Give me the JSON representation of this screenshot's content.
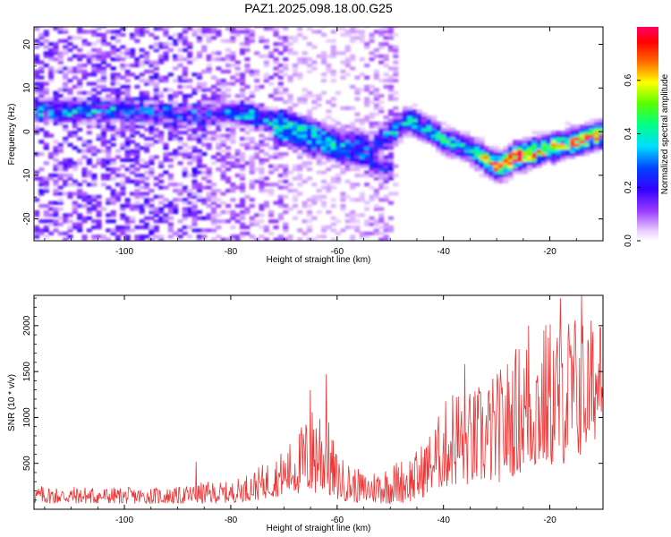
{
  "figure_title": "PAZ1.2025.098.18.00.G25",
  "chart_data": [
    {
      "type": "heatmap",
      "xlabel": "Height of straight line (km)",
      "ylabel": "Frequency (Hz)",
      "xlim": [
        -117,
        -10
      ],
      "ylim": [
        -25,
        24
      ],
      "xticks": [
        -100,
        -80,
        -60,
        -40,
        -20
      ],
      "yticks": [
        -20,
        -10,
        0,
        10,
        20
      ],
      "x_tick_labels": [
        "-100",
        "-80",
        "-60",
        "-40",
        "-20"
      ],
      "y_tick_labels": [
        "-20",
        "-10",
        "0",
        "10",
        "20"
      ],
      "colorbar": {
        "label": "Normalized spectral amplitude",
        "range": [
          0,
          0.8
        ],
        "ticks": [
          0,
          0.2,
          0.4,
          0.6
        ],
        "tick_labels": [
          "0.0",
          "0.2",
          "0.4",
          "0.6"
        ]
      },
      "ridge": [
        {
          "x": -108,
          "y": 4.5,
          "amp": 0.2
        },
        {
          "x": -100,
          "y": 4.5,
          "amp": 0.22
        },
        {
          "x": -94,
          "y": 4,
          "amp": 0.18
        },
        {
          "x": -88,
          "y": 3.5,
          "amp": 0.15
        },
        {
          "x": -82,
          "y": 4,
          "amp": 0.18
        },
        {
          "x": -76,
          "y": 3.5,
          "amp": 0.28
        },
        {
          "x": -72,
          "y": 2,
          "amp": 0.25
        },
        {
          "x": -68,
          "y": 1,
          "amp": 0.3
        },
        {
          "x": -66,
          "y": 0.5,
          "amp": 0.3
        },
        {
          "x": -63,
          "y": -1.5,
          "amp": 0.28
        },
        {
          "x": -60,
          "y": -3,
          "amp": 0.22
        },
        {
          "x": -57,
          "y": -2,
          "amp": 0.18
        },
        {
          "x": -54,
          "y": -4,
          "amp": 0.2
        },
        {
          "x": -47,
          "y": 2.5,
          "amp": 0.35
        },
        {
          "x": -43,
          "y": 0,
          "amp": 0.3
        },
        {
          "x": -40,
          "y": -2.5,
          "amp": 0.35
        },
        {
          "x": -36,
          "y": -4,
          "amp": 0.3
        },
        {
          "x": -32,
          "y": -7,
          "amp": 0.5
        },
        {
          "x": -30,
          "y": -8.5,
          "amp": 0.65
        },
        {
          "x": -27,
          "y": -6,
          "amp": 0.75
        },
        {
          "x": -22,
          "y": -4.5,
          "amp": 0.6
        },
        {
          "x": -17,
          "y": -3,
          "amp": 0.55
        },
        {
          "x": -14,
          "y": -2,
          "amp": 0.6
        },
        {
          "x": -11,
          "y": -1,
          "amp": 0.55
        }
      ],
      "secondary_ridge": [
        {
          "x": -70,
          "y": -1,
          "amp": 0.25
        },
        {
          "x": -64,
          "y": -4,
          "amp": 0.22
        },
        {
          "x": -56,
          "y": -6,
          "amp": 0.2
        },
        {
          "x": -52,
          "y": -8.5,
          "amp": 0.2
        }
      ]
    },
    {
      "type": "line",
      "xlabel": "Height of straight line (km)",
      "ylabel": "SNR (10 * v/v)",
      "xlim": [
        -117,
        -10
      ],
      "ylim": [
        0,
        2330
      ],
      "xticks": [
        -100,
        -80,
        -60,
        -40,
        -20
      ],
      "yticks": [
        500,
        1000,
        1500,
        2000
      ],
      "x_tick_labels": [
        "-100",
        "-80",
        "-60",
        "-40",
        "-20"
      ],
      "y_tick_labels": [
        "500",
        "1000",
        "1500",
        "2000"
      ],
      "line_color": "#ee3333",
      "envelope": {
        "x": [
          -117,
          -100,
          -90,
          -85,
          -80,
          -75,
          -70,
          -67,
          -63,
          -60,
          -55,
          -50,
          -45,
          -42,
          -38,
          -35,
          -30,
          -25,
          -20,
          -16,
          -13,
          -10
        ],
        "lower": [
          60,
          60,
          60,
          60,
          70,
          100,
          150,
          160,
          130,
          100,
          60,
          60,
          80,
          200,
          250,
          250,
          280,
          400,
          450,
          500,
          600,
          900
        ],
        "upper": [
          260,
          240,
          240,
          300,
          300,
          450,
          650,
          900,
          1300,
          600,
          400,
          500,
          650,
          900,
          1400,
          1300,
          1500,
          1900,
          2100,
          2200,
          2100,
          2100
        ]
      },
      "spikes": [
        {
          "x": -86.5,
          "y": 520
        },
        {
          "x": -62,
          "y": 1470
        },
        {
          "x": -65,
          "y": 1300
        },
        {
          "x": -36,
          "y": 1580
        },
        {
          "x": -24,
          "y": 2000
        },
        {
          "x": -18,
          "y": 2300
        },
        {
          "x": -14,
          "y": 2330
        },
        {
          "x": -10.5,
          "y": 1980
        }
      ]
    }
  ]
}
